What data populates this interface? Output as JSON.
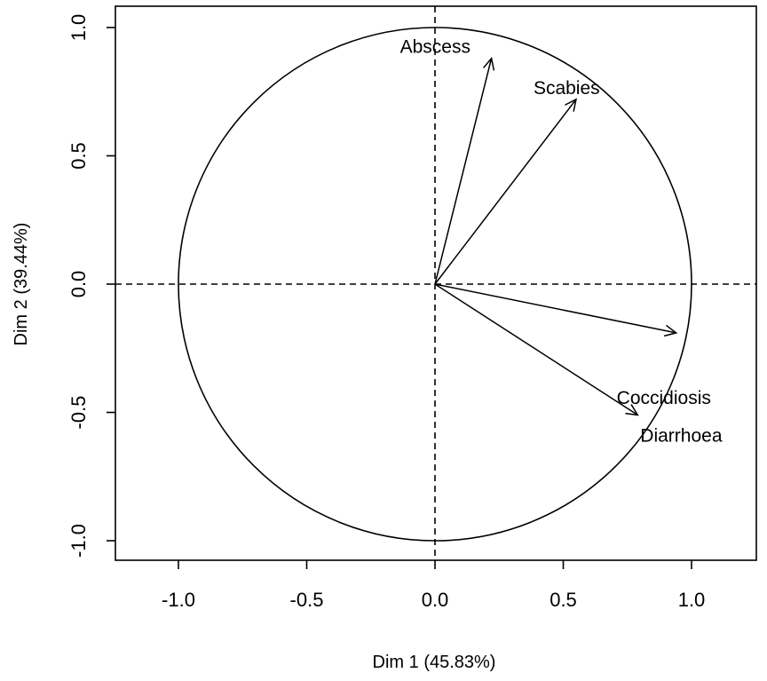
{
  "chart_data": {
    "type": "scatter",
    "subtype": "correlation-circle",
    "title": "",
    "xlabel": "Dim 1 (45.83%)",
    "ylabel": "Dim 2 (39.44%)",
    "xlim": [
      -1.0,
      1.0
    ],
    "ylim": [
      -1.0,
      1.0
    ],
    "x_ticks": [
      "-1.0",
      "-0.5",
      "0.0",
      "0.5",
      "1.0"
    ],
    "y_ticks": [
      "-1.0",
      "-0.5",
      "0.0",
      "0.5",
      "1.0"
    ],
    "grid": false,
    "unit_circle": true,
    "reference_lines": "dashed at x=0 and y=0",
    "variables": [
      {
        "name": "Abscess",
        "x": 0.22,
        "y": 0.88
      },
      {
        "name": "Scabies",
        "x": 0.55,
        "y": 0.72
      },
      {
        "name": "Coccidiosis",
        "x": 0.94,
        "y": -0.19
      },
      {
        "name": "Diarrhoea",
        "x": 0.79,
        "y": -0.51
      }
    ],
    "colors": {
      "line": "#000000",
      "background": "#ffffff"
    }
  }
}
